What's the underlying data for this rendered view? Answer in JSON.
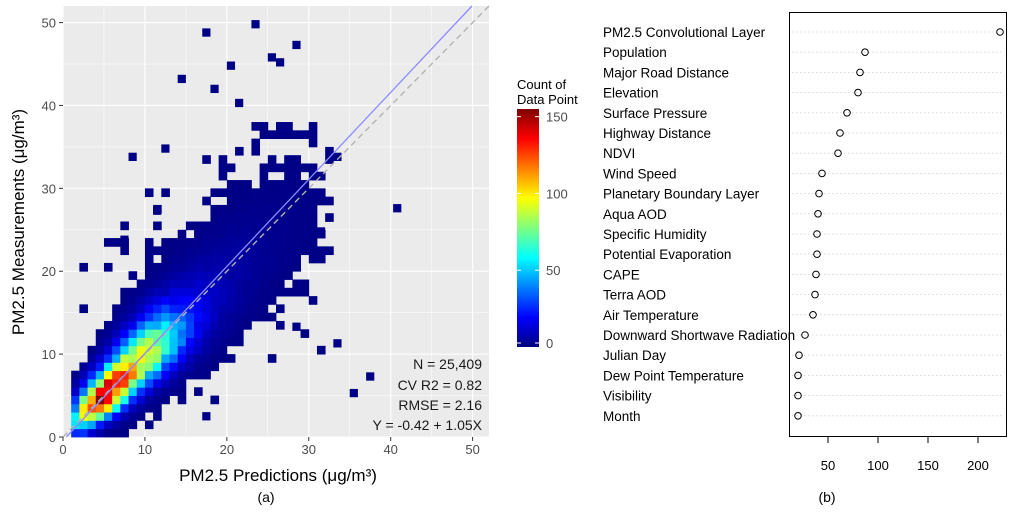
{
  "chart_data": [
    {
      "type": "heatmap",
      "panel_label": "(a)",
      "xlabel": "PM2.5 Predictions (μg/m³)",
      "ylabel": "PM2.5 Measurements (μg/m³)",
      "xlim": [
        0,
        52
      ],
      "ylim": [
        0,
        52
      ],
      "x_ticks": [
        0,
        10,
        20,
        30,
        40,
        50
      ],
      "y_ticks": [
        0,
        10,
        20,
        30,
        40,
        50
      ],
      "grid": true,
      "bin_width": 1,
      "legend": {
        "title": [
          "Count of",
          "Data Point"
        ],
        "ticks": [
          0,
          50,
          100,
          150
        ],
        "range": [
          0,
          155
        ],
        "colors": [
          "#00007F",
          "#0000FF",
          "#007FFF",
          "#00FFFF",
          "#7FFF7F",
          "#FFFF00",
          "#FF7F00",
          "#FF0000",
          "#7F0000"
        ],
        "placement": "right"
      },
      "stats": [
        "N = 25,409",
        "CV R2 = 0.82",
        "RMSE = 2.16",
        "Y = -0.42 + 1.05X"
      ],
      "fit_line": {
        "intercept": -0.42,
        "slope": 1.05,
        "color": "#8c8cff"
      },
      "identity_line": {
        "intercept": 0,
        "slope": 1,
        "color": "#b3b3b3",
        "dashed": true
      },
      "density_model": {
        "core": [
          {
            "x": 4,
            "y": 4,
            "count": 140
          },
          {
            "x": 5,
            "y": 5,
            "count": 155
          },
          {
            "x": 6,
            "y": 6,
            "count": 140
          },
          {
            "x": 7,
            "y": 7,
            "count": 120
          },
          {
            "x": 8,
            "y": 8,
            "count": 110
          },
          {
            "x": 9,
            "y": 9,
            "count": 100
          },
          {
            "x": 10,
            "y": 10,
            "count": 95
          },
          {
            "x": 11,
            "y": 11,
            "count": 85
          },
          {
            "x": 12,
            "y": 12,
            "count": 70
          },
          {
            "x": 13,
            "y": 13,
            "count": 55
          },
          {
            "x": 14,
            "y": 14,
            "count": 40
          },
          {
            "x": 15,
            "y": 15,
            "count": 25
          },
          {
            "x": 17,
            "y": 17,
            "count": 12
          },
          {
            "x": 20,
            "y": 20,
            "count": 5
          },
          {
            "x": 24,
            "y": 24,
            "count": 2
          }
        ],
        "cloud_extent": {
          "x": [
            1,
            33
          ],
          "y": [
            0,
            38
          ]
        },
        "outliers": [
          {
            "x": 17.5,
            "y": 48.8
          },
          {
            "x": 23.5,
            "y": 49.8
          },
          {
            "x": 14.5,
            "y": 43.2
          },
          {
            "x": 20.5,
            "y": 44.8
          },
          {
            "x": 25.5,
            "y": 45.8
          },
          {
            "x": 28.5,
            "y": 47.3
          },
          {
            "x": 26.5,
            "y": 45.2
          },
          {
            "x": 18.5,
            "y": 42.0
          },
          {
            "x": 21.5,
            "y": 40.3
          },
          {
            "x": 8.5,
            "y": 33.8
          },
          {
            "x": 12.5,
            "y": 34.8
          },
          {
            "x": 33.5,
            "y": 33.8
          },
          {
            "x": 40.8,
            "y": 27.6
          },
          {
            "x": 37.5,
            "y": 7.3
          },
          {
            "x": 35.5,
            "y": 5.3
          },
          {
            "x": 17.5,
            "y": 2.5
          },
          {
            "x": 28.5,
            "y": 13.3
          },
          {
            "x": 33.5,
            "y": 11.3
          },
          {
            "x": 25.5,
            "y": 18.3
          },
          {
            "x": 31.5,
            "y": 24.8
          },
          {
            "x": 7.5,
            "y": 23.8
          },
          {
            "x": 11.5,
            "y": 27.3
          }
        ]
      }
    },
    {
      "type": "dot",
      "panel_label": "(b)",
      "categories": [
        "PM2.5 Convolutional Layer",
        "Population",
        "Major Road Distance",
        "Elevation",
        "Surface Pressure",
        "Highway Distance",
        "NDVI",
        "Wind Speed",
        "Planetary Boundary Layer",
        "Aqua AOD",
        "Specific Humidity",
        "Potential Evaporation",
        "CAPE",
        "Terra AOD",
        "Air Temperature",
        "Downward Shortwave Radiation",
        "Julian Day",
        "Dew Point Temperature",
        "Visibility",
        "Month"
      ],
      "values": [
        222,
        87,
        82,
        80,
        69,
        62,
        60,
        44,
        41,
        40,
        39,
        39,
        38,
        37,
        35,
        27,
        21,
        20,
        20,
        20
      ],
      "xlim": [
        12,
        228
      ],
      "x_ticks": [
        50,
        100,
        150,
        200
      ],
      "grid": true
    }
  ]
}
